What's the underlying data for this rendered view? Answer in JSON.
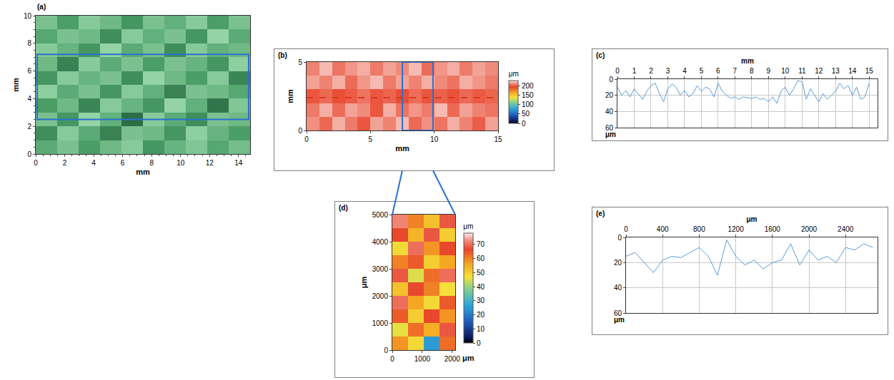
{
  "chart_data": [
    {
      "type": "heatmap",
      "title": "(a)",
      "x_label": "mm",
      "y_label": "mm",
      "xlim": [
        0,
        14.8
      ],
      "ylim": [
        0,
        10
      ],
      "xticks": [
        0,
        2,
        4,
        6,
        8,
        10,
        12,
        14
      ],
      "yticks": [
        0,
        2,
        4,
        6,
        8,
        10
      ],
      "x": [
        0,
        1.48,
        2.96,
        4.44,
        5.92,
        7.4,
        8.88,
        10.36,
        11.84,
        13.32,
        14.8
      ],
      "y": [
        0,
        1,
        2,
        3,
        4,
        5,
        6,
        7,
        8,
        9,
        10
      ],
      "z": [
        [
          55,
          60,
          52,
          58,
          62,
          50,
          57,
          61,
          54,
          59
        ],
        [
          48,
          62,
          55,
          45,
          60,
          58,
          50,
          63,
          57,
          52
        ],
        [
          60,
          50,
          64,
          56,
          40,
          62,
          55,
          48,
          60,
          58
        ],
        [
          52,
          58,
          46,
          62,
          57,
          50,
          64,
          56,
          42,
          61
        ],
        [
          63,
          55,
          60,
          50,
          62,
          56,
          45,
          60,
          58,
          54
        ],
        [
          50,
          62,
          57,
          60,
          48,
          64,
          58,
          52,
          62,
          46
        ],
        [
          58,
          45,
          62,
          55,
          60,
          52,
          60,
          57,
          50,
          63
        ],
        [
          62,
          57,
          50,
          64,
          55,
          60,
          48,
          62,
          56,
          58
        ],
        [
          54,
          60,
          58,
          48,
          62,
          56,
          60,
          50,
          64,
          55
        ],
        [
          60,
          52,
          62,
          58,
          50,
          60,
          56,
          62,
          52,
          60
        ]
      ],
      "box": {
        "x": [
          0.1,
          14.7
        ],
        "y": [
          2.5,
          7.2
        ],
        "color": "#2a6fd0"
      }
    },
    {
      "type": "heatmap",
      "title": "(b)",
      "x_label": "mm",
      "y_label": "mm",
      "xlim": [
        0,
        15
      ],
      "ylim": [
        0,
        5
      ],
      "xticks": [
        0,
        5,
        10,
        15
      ],
      "yticks": [
        0,
        5
      ],
      "x": [
        0,
        1,
        2,
        3,
        4,
        5,
        6,
        7,
        8,
        9,
        10,
        11,
        12,
        13,
        14,
        15
      ],
      "y": [
        0,
        1,
        2,
        3,
        4,
        5
      ],
      "z": [
        [
          215,
          205,
          220,
          210,
          200,
          218,
          212,
          222,
          205,
          215,
          208,
          220,
          212,
          202,
          218
        ],
        [
          210,
          220,
          206,
          218,
          214,
          200,
          220,
          208,
          216,
          210,
          222,
          205,
          218,
          212,
          208
        ],
        [
          200,
          205,
          198,
          202,
          208,
          200,
          204,
          198,
          206,
          200,
          203,
          199,
          205,
          201,
          204
        ],
        [
          218,
          212,
          220,
          206,
          216,
          222,
          210,
          218,
          212,
          220,
          214,
          208,
          220,
          216,
          210
        ],
        [
          212,
          222,
          208,
          216,
          220,
          210,
          218,
          214,
          222,
          206,
          216,
          220,
          210,
          218,
          214
        ]
      ],
      "colorbar": {
        "range": [
          0,
          230
        ],
        "ticks": [
          0,
          50,
          100,
          150,
          200
        ],
        "title": "μm"
      },
      "profile_line": {
        "y": 2.4,
        "color": "#d9381e",
        "line_style": "dashed"
      },
      "box": {
        "x": [
          7.5,
          9.9
        ],
        "y": [
          0,
          5
        ],
        "color": "#2a6fd0"
      }
    },
    {
      "type": "line",
      "title": "(c)",
      "x_label": "mm",
      "y_label": "μm",
      "color": "#5b9bd5",
      "grid": true,
      "xlim": [
        0,
        15.5
      ],
      "ylim": [
        60,
        0
      ],
      "xticks": [
        0,
        1,
        2,
        3,
        4,
        5,
        6,
        7,
        8,
        9,
        10,
        11,
        12,
        13,
        14,
        15
      ],
      "yticks": [
        0,
        20,
        40,
        60
      ],
      "x": [
        0,
        0.25,
        0.5,
        0.75,
        1,
        1.25,
        1.5,
        1.75,
        2,
        2.25,
        2.5,
        2.75,
        3,
        3.25,
        3.5,
        3.75,
        4,
        4.25,
        4.5,
        4.75,
        5,
        5.25,
        5.5,
        5.75,
        6,
        6.25,
        6.5,
        6.75,
        7,
        7.25,
        7.5,
        7.75,
        8,
        8.25,
        8.5,
        8.75,
        9,
        9.25,
        9.5,
        9.75,
        10,
        10.25,
        10.5,
        10.75,
        11,
        11.25,
        11.5,
        11.75,
        12,
        12.25,
        12.5,
        12.75,
        13,
        13.25,
        13.5,
        13.75,
        14,
        14.25,
        14.5,
        14.75,
        15
      ],
      "values": [
        10,
        20,
        14,
        22,
        12,
        18,
        25,
        15,
        8,
        5,
        18,
        28,
        12,
        6,
        10,
        20,
        14,
        22,
        18,
        8,
        15,
        10,
        12,
        22,
        5,
        15,
        20,
        24,
        22,
        25,
        22,
        23,
        24,
        22,
        25,
        24,
        28,
        22,
        30,
        15,
        10,
        20,
        12,
        2,
        3,
        25,
        12,
        20,
        28,
        18,
        25,
        20,
        15,
        5,
        12,
        8,
        20,
        10,
        25,
        22,
        5
      ]
    },
    {
      "type": "heatmap",
      "title": "(d)",
      "x_label": "μm",
      "y_label": "μm",
      "xlim": [
        0,
        2100
      ],
      "ylim": [
        0,
        5000
      ],
      "xticks": [
        0,
        1000,
        2000
      ],
      "yticks": [
        0,
        1000,
        2000,
        3000,
        4000,
        5000
      ],
      "x": [
        0,
        525,
        1050,
        1575,
        2100
      ],
      "y": [
        0,
        500,
        1000,
        1500,
        2000,
        2500,
        3000,
        3500,
        4000,
        4500,
        5000
      ],
      "z": [
        [
          58,
          48,
          25,
          62
        ],
        [
          46,
          62,
          55,
          68
        ],
        [
          64,
          50,
          66,
          58
        ],
        [
          70,
          56,
          48,
          64
        ],
        [
          52,
          66,
          60,
          47
        ],
        [
          68,
          45,
          62,
          70
        ],
        [
          60,
          64,
          50,
          56
        ],
        [
          48,
          70,
          58,
          66
        ],
        [
          66,
          54,
          68,
          50
        ],
        [
          72,
          60,
          52,
          68
        ]
      ],
      "colorbar": {
        "range": [
          0,
          78
        ],
        "ticks": [
          0,
          10,
          20,
          30,
          40,
          50,
          60,
          70
        ],
        "title": "μm"
      }
    },
    {
      "type": "line",
      "title": "(e)",
      "x_label": "μm",
      "y_label": "μm",
      "color": "#5b9bd5",
      "grid": true,
      "xlim": [
        0,
        2750
      ],
      "ylim": [
        60,
        0
      ],
      "xticks": [
        0,
        400,
        800,
        1200,
        1600,
        2000,
        2400
      ],
      "yticks": [
        0,
        20,
        40,
        60
      ],
      "x": [
        0,
        100,
        200,
        300,
        400,
        500,
        600,
        700,
        800,
        900,
        1000,
        1100,
        1200,
        1300,
        1400,
        1500,
        1600,
        1700,
        1800,
        1900,
        2000,
        2100,
        2200,
        2300,
        2400,
        2500,
        2600,
        2700
      ],
      "values": [
        15,
        12,
        20,
        28,
        18,
        15,
        16,
        12,
        8,
        15,
        30,
        2,
        15,
        22,
        18,
        25,
        20,
        18,
        5,
        22,
        10,
        18,
        15,
        20,
        8,
        10,
        5,
        8
      ]
    }
  ]
}
